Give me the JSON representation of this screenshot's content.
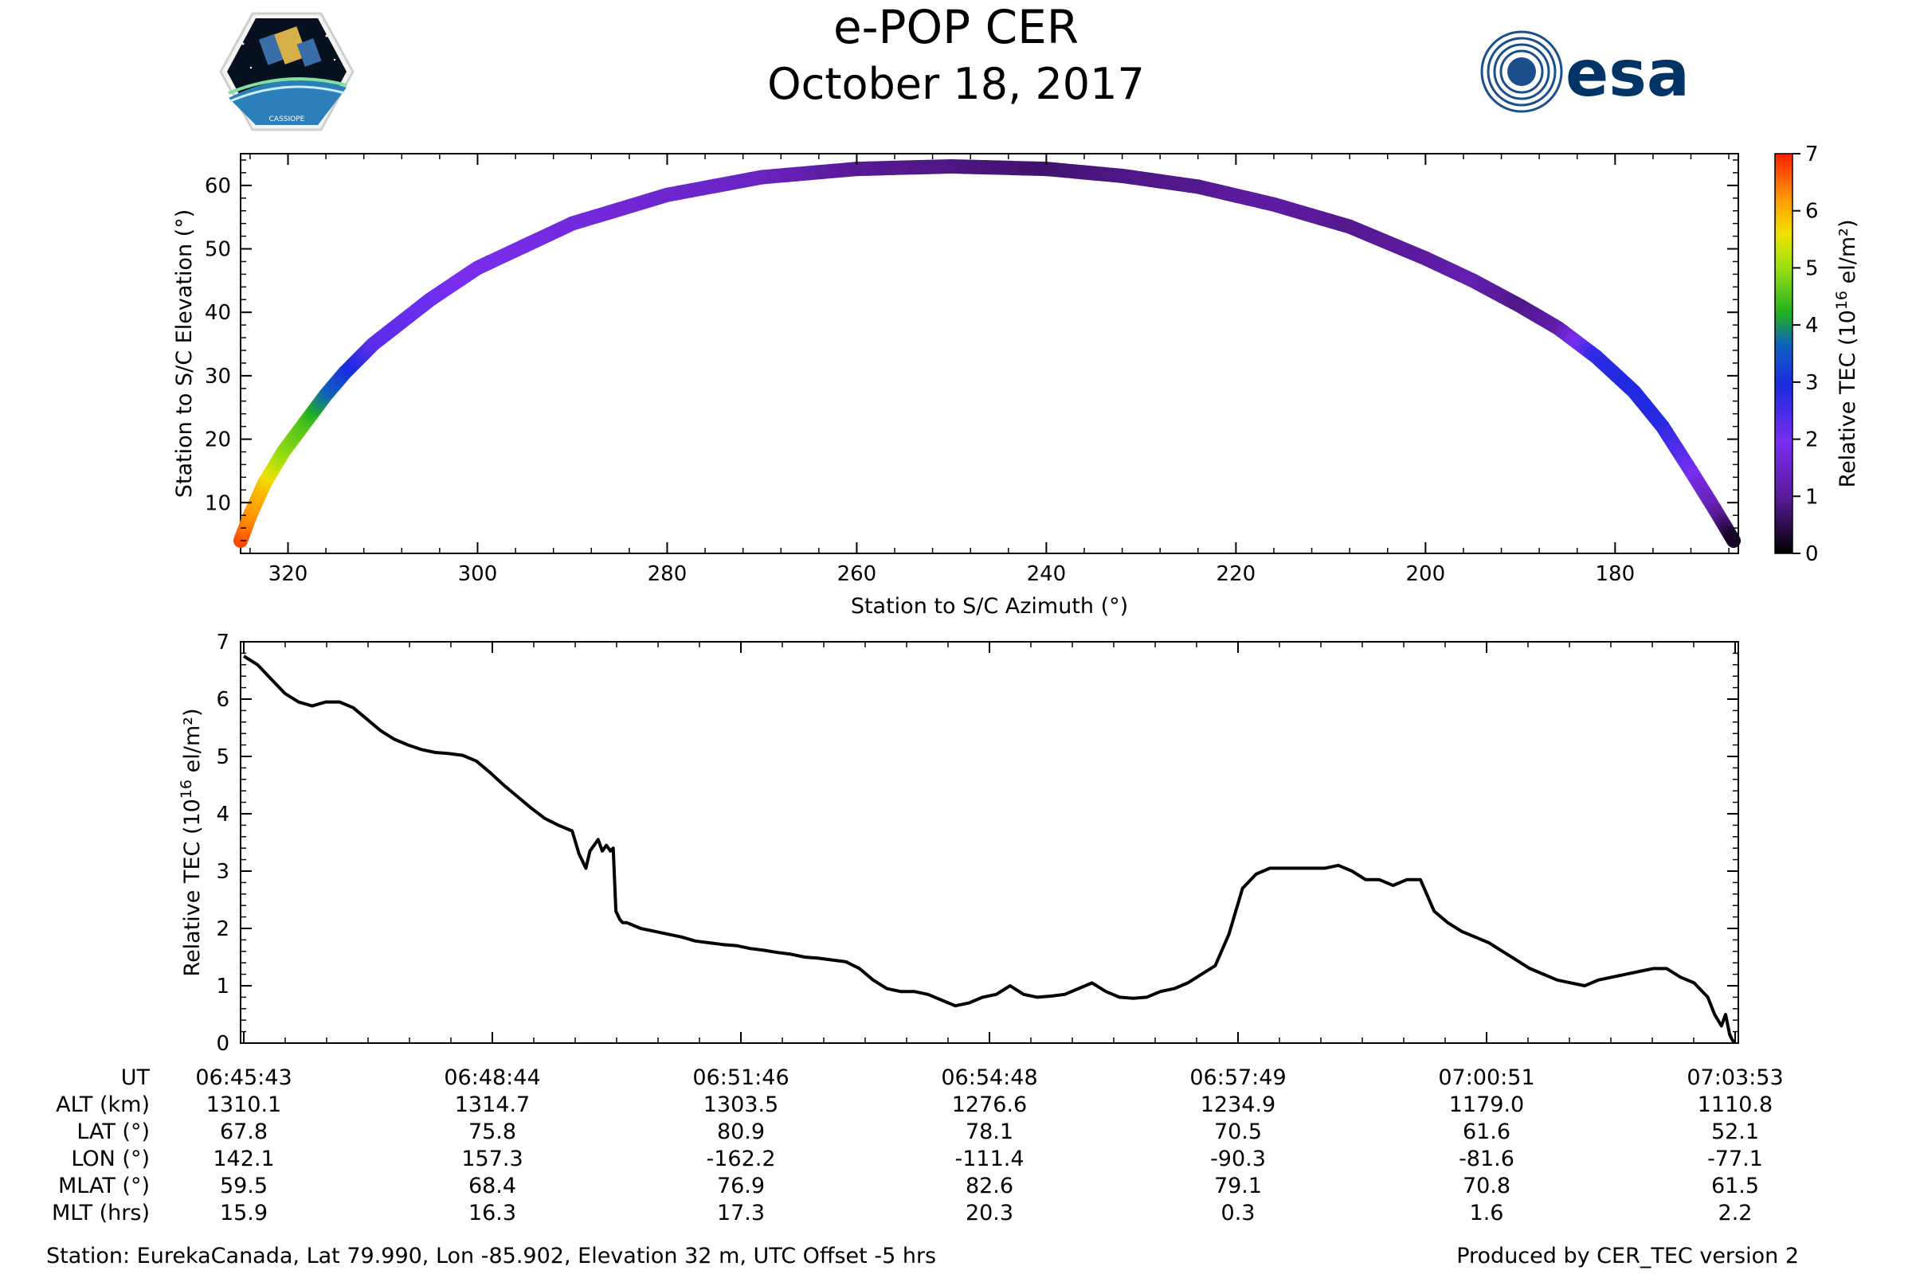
{
  "header": {
    "title": "e-POP CER",
    "subtitle": "October 18, 2017",
    "logo_left_text": "CASSIOPE",
    "logo_right_text": "esa"
  },
  "chart_data": [
    {
      "type": "scatter",
      "title": "",
      "xlabel": "Station to S/C Azimuth (°)",
      "ylabel": "Station to S/C Elevation (°)",
      "xlim": [
        325,
        167
      ],
      "ylim": [
        2,
        65
      ],
      "xticks": [
        320,
        300,
        280,
        260,
        240,
        220,
        200,
        180
      ],
      "yticks": [
        10,
        20,
        30,
        40,
        50,
        60
      ],
      "colorbar": {
        "label": "Relative TEC (10¹⁶ el/m²)",
        "label_main": "Relative TEC (10",
        "label_sup": "16",
        "label_end": " el/m²)",
        "range": [
          0,
          7
        ],
        "ticks": [
          0,
          1,
          2,
          3,
          4,
          5,
          6,
          7
        ],
        "colormap": "gnuplot2-like"
      },
      "track": [
        {
          "az": 325.0,
          "el": 4.0,
          "tec": 6.8
        },
        {
          "az": 324.0,
          "el": 8.0,
          "tec": 6.3
        },
        {
          "az": 322.5,
          "el": 13.0,
          "tec": 5.9
        },
        {
          "az": 320.5,
          "el": 18.0,
          "tec": 5.0
        },
        {
          "az": 318.0,
          "el": 23.0,
          "tec": 4.5
        },
        {
          "az": 316.0,
          "el": 27.0,
          "tec": 3.8
        },
        {
          "az": 314.0,
          "el": 30.5,
          "tec": 3.2
        },
        {
          "az": 311.0,
          "el": 35.0,
          "tec": 2.3
        },
        {
          "az": 305.0,
          "el": 42.0,
          "tec": 2.1
        },
        {
          "az": 300.0,
          "el": 47.0,
          "tec": 1.9
        },
        {
          "az": 290.0,
          "el": 54.0,
          "tec": 1.75
        },
        {
          "az": 280.0,
          "el": 58.5,
          "tec": 1.6
        },
        {
          "az": 270.0,
          "el": 61.3,
          "tec": 1.45
        },
        {
          "az": 260.0,
          "el": 62.6,
          "tec": 0.95
        },
        {
          "az": 250.0,
          "el": 63.0,
          "tec": 0.85
        },
        {
          "az": 240.0,
          "el": 62.6,
          "tec": 0.7
        },
        {
          "az": 232.0,
          "el": 61.5,
          "tec": 0.85
        },
        {
          "az": 224.0,
          "el": 59.8,
          "tec": 0.9
        },
        {
          "az": 216.0,
          "el": 57.0,
          "tec": 1.1
        },
        {
          "az": 208.0,
          "el": 53.5,
          "tec": 0.9
        },
        {
          "az": 200.0,
          "el": 48.5,
          "tec": 1.05
        },
        {
          "az": 195.0,
          "el": 45.0,
          "tec": 1.25
        },
        {
          "az": 190.0,
          "el": 41.0,
          "tec": 0.85
        },
        {
          "az": 186.0,
          "el": 37.5,
          "tec": 1.1
        },
        {
          "az": 182.0,
          "el": 33.0,
          "tec": 2.7
        },
        {
          "az": 178.0,
          "el": 27.5,
          "tec": 2.9
        },
        {
          "az": 175.0,
          "el": 22.0,
          "tec": 2.8
        },
        {
          "az": 172.0,
          "el": 15.0,
          "tec": 2.1
        },
        {
          "az": 169.5,
          "el": 9.0,
          "tec": 1.3
        },
        {
          "az": 167.5,
          "el": 4.0,
          "tec": 0.2
        }
      ]
    },
    {
      "type": "line",
      "title": "",
      "xlabel": "",
      "ylabel": "Relative TEC (10¹⁶ el/m²)",
      "ylabel_main": "Relative TEC (10",
      "ylabel_sup": "16",
      "ylabel_end": " el/m²)",
      "xlim": [
        0,
        1090
      ],
      "ylim": [
        0,
        7
      ],
      "yticks": [
        0,
        1,
        2,
        3,
        4,
        5,
        6,
        7
      ],
      "series": [
        {
          "name": "Relative TEC",
          "x": [
            0,
            10,
            20,
            30,
            40,
            50,
            60,
            70,
            80,
            90,
            100,
            110,
            120,
            130,
            140,
            150,
            160,
            170,
            180,
            190,
            200,
            210,
            220,
            230,
            240,
            245,
            250,
            253,
            256,
            259,
            262,
            265,
            268,
            270,
            272,
            275,
            277,
            280,
            285,
            290,
            300,
            310,
            320,
            330,
            340,
            350,
            360,
            370,
            380,
            390,
            400,
            410,
            420,
            430,
            440,
            450,
            460,
            470,
            480,
            490,
            500,
            510,
            520,
            530,
            540,
            550,
            560,
            570,
            580,
            590,
            600,
            610,
            620,
            630,
            640,
            650,
            660,
            670,
            680,
            690,
            700,
            710,
            720,
            730,
            740,
            750,
            760,
            770,
            780,
            790,
            800,
            810,
            820,
            830,
            840,
            850,
            860,
            870,
            880,
            890,
            900,
            910,
            920,
            930,
            940,
            950,
            960,
            970,
            980,
            990,
            1000,
            1010,
            1020,
            1030,
            1040,
            1050,
            1060,
            1070,
            1075,
            1080,
            1083,
            1086,
            1088,
            1090
          ],
          "y": [
            6.75,
            6.6,
            6.35,
            6.1,
            5.95,
            5.88,
            5.95,
            5.95,
            5.85,
            5.65,
            5.45,
            5.3,
            5.2,
            5.12,
            5.07,
            5.05,
            5.02,
            4.92,
            4.72,
            4.5,
            4.3,
            4.1,
            3.92,
            3.8,
            3.7,
            3.3,
            3.05,
            3.35,
            3.45,
            3.55,
            3.35,
            3.45,
            3.35,
            3.4,
            2.3,
            2.15,
            2.1,
            2.1,
            2.05,
            2.0,
            1.95,
            1.9,
            1.85,
            1.78,
            1.75,
            1.72,
            1.7,
            1.65,
            1.62,
            1.58,
            1.55,
            1.5,
            1.48,
            1.45,
            1.42,
            1.3,
            1.1,
            0.95,
            0.9,
            0.9,
            0.85,
            0.75,
            0.65,
            0.7,
            0.8,
            0.85,
            1.0,
            0.85,
            0.8,
            0.82,
            0.85,
            0.95,
            1.05,
            0.9,
            0.8,
            0.78,
            0.8,
            0.9,
            0.95,
            1.05,
            1.2,
            1.35,
            1.9,
            2.7,
            2.95,
            3.05,
            3.05,
            3.05,
            3.05,
            3.05,
            3.1,
            3.0,
            2.85,
            2.85,
            2.75,
            2.85,
            2.85,
            2.3,
            2.1,
            1.95,
            1.85,
            1.75,
            1.6,
            1.45,
            1.3,
            1.2,
            1.1,
            1.05,
            1.0,
            1.1,
            1.15,
            1.2,
            1.25,
            1.3,
            1.3,
            1.15,
            1.05,
            0.8,
            0.5,
            0.3,
            0.5,
            0.15,
            0.05,
            0.0
          ]
        }
      ],
      "table": {
        "row_labels": [
          "UT",
          "ALT (km)",
          "LAT (°)",
          "LON (°)",
          "MLAT (°)",
          "MLT (hrs)"
        ],
        "columns": [
          [
            "06:45:43",
            "1310.1",
            "67.8",
            "142.1",
            "59.5",
            "15.9"
          ],
          [
            "06:48:44",
            "1314.7",
            "75.8",
            "157.3",
            "68.4",
            "16.3"
          ],
          [
            "06:51:46",
            "1303.5",
            "80.9",
            "-162.2",
            "76.9",
            "17.3"
          ],
          [
            "06:54:48",
            "1276.6",
            "78.1",
            "-111.4",
            "82.6",
            "20.3"
          ],
          [
            "06:57:49",
            "1234.9",
            "70.5",
            "-90.3",
            "79.1",
            "0.3"
          ],
          [
            "07:00:51",
            "1179.0",
            "61.6",
            "-81.6",
            "70.8",
            "1.6"
          ],
          [
            "07:03:53",
            "1110.8",
            "52.1",
            "-77.1",
            "61.5",
            "2.2"
          ]
        ]
      }
    }
  ],
  "footer": {
    "station": "Station: EurekaCanada, Lat 79.990, Lon -85.902, Elevation 32 m, UTC Offset -5 hrs",
    "producer": "Produced by CER_TEC version 2"
  }
}
